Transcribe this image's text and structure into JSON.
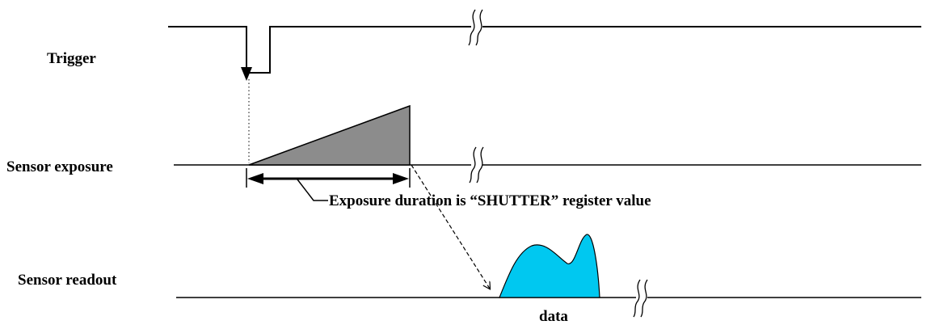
{
  "labels": {
    "trigger": "Trigger",
    "sensor_exposure": "Sensor exposure",
    "sensor_readout": "Sensor readout",
    "exposure_note": "Exposure duration is “SHUTTER” register value",
    "data": "data"
  },
  "colors": {
    "exposure_fill": "#8c8c8c",
    "readout_fill": "#00c8f0",
    "line": "#000000"
  }
}
